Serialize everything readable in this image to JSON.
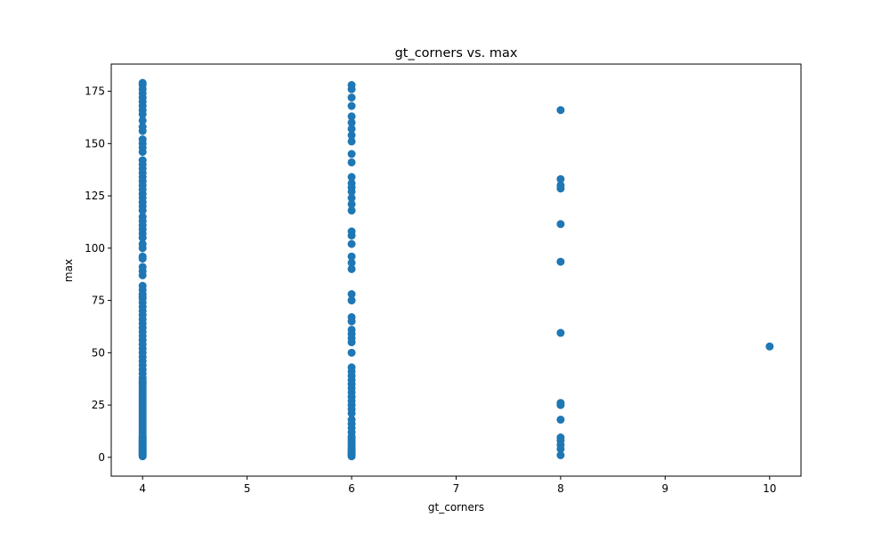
{
  "chart_data": {
    "type": "scatter",
    "title": "gt_corners vs. max",
    "xlabel": "gt_corners",
    "ylabel": "max",
    "xlim": [
      3.7,
      10.3
    ],
    "ylim": [
      -9,
      188
    ],
    "xticks": [
      4,
      5,
      6,
      7,
      8,
      9,
      10
    ],
    "yticks": [
      0,
      25,
      50,
      75,
      100,
      125,
      150,
      175
    ],
    "grid": false,
    "legend": "none",
    "marker_color": "#1f77b4",
    "series": [
      {
        "points": [
          [
            4,
            0.5
          ],
          [
            4,
            1
          ],
          [
            4,
            1.5
          ],
          [
            4,
            2
          ],
          [
            4,
            2.5
          ],
          [
            4,
            3
          ],
          [
            4,
            3.5
          ],
          [
            4,
            4
          ],
          [
            4,
            4.5
          ],
          [
            4,
            5
          ],
          [
            4,
            5.5
          ],
          [
            4,
            6
          ],
          [
            4,
            6.5
          ],
          [
            4,
            7
          ],
          [
            4,
            7.5
          ],
          [
            4,
            8
          ],
          [
            4,
            8.5
          ],
          [
            4,
            9
          ],
          [
            4,
            9.5
          ],
          [
            4,
            10
          ],
          [
            4,
            11
          ],
          [
            4,
            12
          ],
          [
            4,
            13
          ],
          [
            4,
            14
          ],
          [
            4,
            15
          ],
          [
            4,
            16
          ],
          [
            4,
            17
          ],
          [
            4,
            18
          ],
          [
            4,
            19
          ],
          [
            4,
            20
          ],
          [
            4,
            21
          ],
          [
            4,
            22
          ],
          [
            4,
            23
          ],
          [
            4,
            24
          ],
          [
            4,
            25
          ],
          [
            4,
            26
          ],
          [
            4,
            27
          ],
          [
            4,
            28
          ],
          [
            4,
            29
          ],
          [
            4,
            30
          ],
          [
            4,
            31
          ],
          [
            4,
            32
          ],
          [
            4,
            33
          ],
          [
            4,
            34
          ],
          [
            4,
            35
          ],
          [
            4,
            36
          ],
          [
            4,
            37
          ],
          [
            4,
            38
          ],
          [
            4,
            40
          ],
          [
            4,
            42
          ],
          [
            4,
            44
          ],
          [
            4,
            46
          ],
          [
            4,
            48
          ],
          [
            4,
            50
          ],
          [
            4,
            52
          ],
          [
            4,
            54
          ],
          [
            4,
            56
          ],
          [
            4,
            58
          ],
          [
            4,
            60
          ],
          [
            4,
            62
          ],
          [
            4,
            64
          ],
          [
            4,
            66
          ],
          [
            4,
            68
          ],
          [
            4,
            70
          ],
          [
            4,
            72
          ],
          [
            4,
            74
          ],
          [
            4,
            76
          ],
          [
            4,
            77
          ],
          [
            4,
            78
          ],
          [
            4,
            80
          ],
          [
            4,
            82
          ],
          [
            4,
            87
          ],
          [
            4,
            89
          ],
          [
            4,
            91
          ],
          [
            4,
            95
          ],
          [
            4,
            96
          ],
          [
            4,
            100
          ],
          [
            4,
            102
          ],
          [
            4,
            105
          ],
          [
            4,
            107
          ],
          [
            4,
            109
          ],
          [
            4,
            111
          ],
          [
            4,
            113
          ],
          [
            4,
            115
          ],
          [
            4,
            118
          ],
          [
            4,
            120
          ],
          [
            4,
            122
          ],
          [
            4,
            124
          ],
          [
            4,
            126
          ],
          [
            4,
            128
          ],
          [
            4,
            130
          ],
          [
            4,
            132
          ],
          [
            4,
            134
          ],
          [
            4,
            136
          ],
          [
            4,
            138
          ],
          [
            4,
            140
          ],
          [
            4,
            142
          ],
          [
            4,
            146
          ],
          [
            4,
            148
          ],
          [
            4,
            150
          ],
          [
            4,
            152
          ],
          [
            4,
            156
          ],
          [
            4,
            158
          ],
          [
            4,
            161
          ],
          [
            4,
            164
          ],
          [
            4,
            166
          ],
          [
            4,
            168
          ],
          [
            4,
            170
          ],
          [
            4,
            172
          ],
          [
            4,
            174
          ],
          [
            4,
            176
          ],
          [
            4,
            178
          ],
          [
            4,
            179
          ],
          [
            6,
            0.5
          ],
          [
            6,
            1
          ],
          [
            6,
            1.5
          ],
          [
            6,
            2
          ],
          [
            6,
            2.5
          ],
          [
            6,
            3
          ],
          [
            6,
            3.5
          ],
          [
            6,
            4
          ],
          [
            6,
            5
          ],
          [
            6,
            6
          ],
          [
            6,
            7
          ],
          [
            6,
            8
          ],
          [
            6,
            9
          ],
          [
            6,
            10
          ],
          [
            6,
            12
          ],
          [
            6,
            14
          ],
          [
            6,
            16
          ],
          [
            6,
            18
          ],
          [
            6,
            21
          ],
          [
            6,
            23
          ],
          [
            6,
            25
          ],
          [
            6,
            27
          ],
          [
            6,
            29
          ],
          [
            6,
            31
          ],
          [
            6,
            33
          ],
          [
            6,
            35
          ],
          [
            6,
            37
          ],
          [
            6,
            39
          ],
          [
            6,
            41
          ],
          [
            6,
            43
          ],
          [
            6,
            50
          ],
          [
            6,
            55
          ],
          [
            6,
            57
          ],
          [
            6,
            59
          ],
          [
            6,
            61
          ],
          [
            6,
            65
          ],
          [
            6,
            67
          ],
          [
            6,
            75
          ],
          [
            6,
            78
          ],
          [
            6,
            90
          ],
          [
            6,
            93
          ],
          [
            6,
            96
          ],
          [
            6,
            102
          ],
          [
            6,
            106
          ],
          [
            6,
            108
          ],
          [
            6,
            118
          ],
          [
            6,
            121
          ],
          [
            6,
            124
          ],
          [
            6,
            127
          ],
          [
            6,
            129
          ],
          [
            6,
            131
          ],
          [
            6,
            134
          ],
          [
            6,
            141
          ],
          [
            6,
            145
          ],
          [
            6,
            151
          ],
          [
            6,
            154
          ],
          [
            6,
            157
          ],
          [
            6,
            160
          ],
          [
            6,
            163
          ],
          [
            6,
            168
          ],
          [
            6,
            172
          ],
          [
            6,
            176
          ],
          [
            6,
            178
          ],
          [
            8,
            1
          ],
          [
            8,
            4
          ],
          [
            8,
            6
          ],
          [
            8,
            8
          ],
          [
            8,
            9.5
          ],
          [
            8,
            18
          ],
          [
            8,
            25
          ],
          [
            8,
            26
          ],
          [
            8,
            59.5
          ],
          [
            8,
            93.5
          ],
          [
            8,
            111.5
          ],
          [
            8,
            128.5
          ],
          [
            8,
            130
          ],
          [
            8,
            133
          ],
          [
            8,
            166
          ],
          [
            10,
            53
          ]
        ]
      }
    ]
  }
}
